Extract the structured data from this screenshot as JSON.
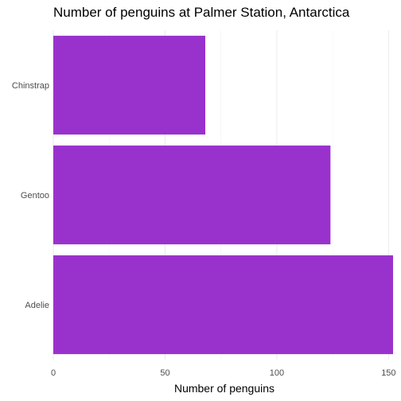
{
  "chart_data": {
    "type": "bar",
    "orientation": "horizontal",
    "title": "Number of penguins at Palmer Station, Antarctica",
    "xlabel": "Number of penguins",
    "ylabel": "",
    "categories": [
      "Adelie",
      "Gentoo",
      "Chinstrap"
    ],
    "values": [
      152,
      124,
      68
    ],
    "xlim": [
      0,
      152
    ],
    "x_ticks": [
      0,
      50,
      100,
      150
    ],
    "grid": true,
    "bar_color": "#9932CC"
  }
}
